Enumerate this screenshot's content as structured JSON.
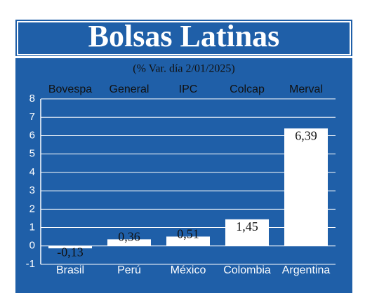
{
  "chart_data": {
    "type": "bar",
    "title": "Bolsas Latinas",
    "subtitle": "(% Var. día 2/01/2025)",
    "categories": [
      "Brasil",
      "Perú",
      "México",
      "Colombia",
      "Argentina"
    ],
    "index_names": [
      "Bovespa",
      "General",
      "IPC",
      "Colcap",
      "Merval"
    ],
    "values": [
      -0.13,
      0.36,
      0.51,
      1.45,
      6.39
    ],
    "value_labels": [
      "-0,13",
      "0,36",
      "0,51",
      "1,45",
      "6,39"
    ],
    "color": "#ffffff",
    "ylim": [
      -1,
      8
    ],
    "yticks": [
      -1,
      0,
      1,
      2,
      3,
      4,
      5,
      6,
      7,
      8
    ],
    "grid": true
  }
}
